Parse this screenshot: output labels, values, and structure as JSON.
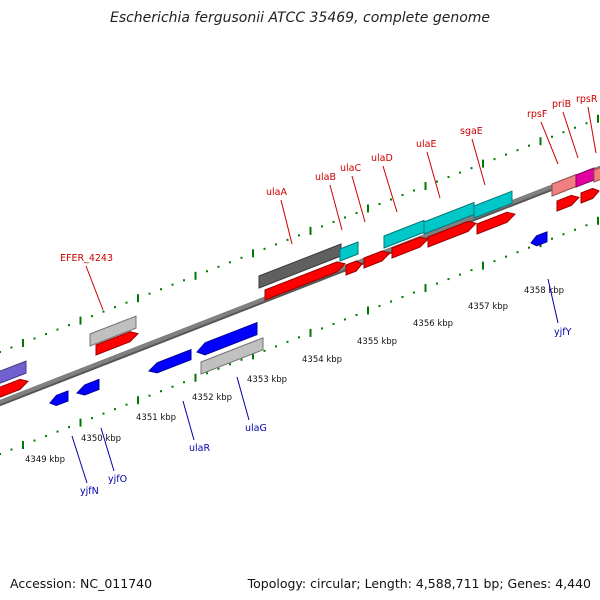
{
  "title": "Escherichia fergusonii ATCC 35469, complete genome",
  "footer": {
    "accession": "Accession: NC_011740",
    "summary": "Topology: circular; Length: 4,588,711 bp; Genes: 4,440"
  },
  "colors": {
    "backbone": "#808080",
    "forward_gene": "#ff0000",
    "reverse_gene": "#0000ff",
    "tick": "#007700",
    "forward_label": "#cc0000",
    "reverse_label": "#0000aa",
    "cyan_feature": "#00c8c8",
    "gray_feature": "#c0c0c0",
    "dark_feature": "#606060",
    "purple_feature": "#7060d0",
    "pink_feature": "#f08080",
    "magenta_feature": "#e000a0"
  },
  "scale_labels": [
    "4349 kbp",
    "4350 kbp",
    "4351 kbp",
    "4352 kbp",
    "4353 kbp",
    "4354 kbp",
    "4355 kbp",
    "4356 kbp",
    "4357 kbp",
    "4358 kbp"
  ],
  "forward_labels": [
    "EFER_4243",
    "ulaA",
    "ulaB",
    "ulaC",
    "ulaD",
    "ulaE",
    "sgaE",
    "rpsF",
    "priB",
    "rpsR"
  ],
  "reverse_labels": [
    "yjfN",
    "yjfO",
    "ulaR",
    "ulaG",
    "yjfY"
  ]
}
